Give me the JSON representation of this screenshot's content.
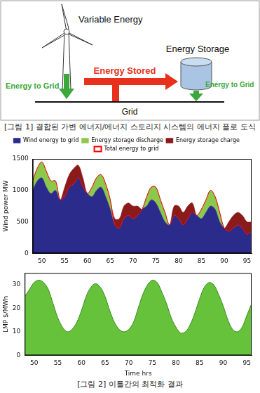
{
  "figure1": {
    "diagram": {
      "source": "Variable Energy",
      "storage": "Energy Storage",
      "stored_flow": "Energy Stored",
      "grid_flows": [
        "Energy to Grid",
        "Energy to Grid"
      ],
      "grid": "Grid"
    },
    "caption": "[그림 1] 결합된 가변 에너지/에너지 스토리지 시스템의 에너지 플로 도식"
  },
  "chart_data": [
    {
      "type": "area",
      "stacked": true,
      "legend": "top",
      "grid": false,
      "y_label": "Wind power MW",
      "x": [
        48,
        49,
        50,
        51,
        52,
        53,
        54,
        55,
        56,
        57,
        58,
        59,
        60,
        61,
        62,
        63,
        64,
        65,
        66,
        67,
        68,
        69,
        70,
        71,
        72,
        73,
        74,
        75,
        76,
        77,
        78,
        79,
        80,
        81,
        82,
        83,
        84,
        85,
        86,
        87,
        88,
        89,
        90,
        91,
        92,
        93,
        94,
        95,
        96
      ],
      "xlim": [
        48,
        96
      ],
      "xticks": [
        50,
        55,
        60,
        65,
        70,
        75,
        80,
        85,
        90,
        95
      ],
      "ylim": [
        0,
        1500
      ],
      "yticks": [
        0,
        500,
        1000,
        1500
      ],
      "series": [
        {
          "name": "Wind energy to grid",
          "type": "area",
          "color": "#2b2b8c",
          "values": [
            1000,
            1150,
            1200,
            1050,
            950,
            1000,
            850,
            900,
            1050,
            1100,
            1200,
            1050,
            950,
            900,
            1000,
            1050,
            900,
            700,
            450,
            400,
            550,
            600,
            550,
            600,
            700,
            750,
            850,
            800,
            650,
            500,
            450,
            600,
            550,
            450,
            550,
            650,
            600,
            550,
            650,
            750,
            700,
            500,
            400,
            350,
            400,
            450,
            400,
            300,
            350
          ]
        },
        {
          "name": "Energy storage discharge",
          "type": "area",
          "color": "#8cc84b",
          "values": [
            150,
            200,
            250,
            250,
            200,
            150,
            0,
            0,
            0,
            0,
            0,
            0,
            0,
            150,
            200,
            200,
            200,
            150,
            0,
            0,
            0,
            0,
            0,
            0,
            0,
            150,
            200,
            250,
            200,
            150,
            0,
            0,
            0,
            0,
            0,
            0,
            0,
            150,
            200,
            250,
            200,
            150,
            0,
            0,
            0,
            0,
            0,
            0,
            0
          ]
        },
        {
          "name": "Energy storage charge",
          "type": "area",
          "color": "#8b1a1a",
          "values": [
            0,
            0,
            0,
            0,
            0,
            0,
            0,
            150,
            200,
            250,
            200,
            150,
            0,
            0,
            0,
            0,
            0,
            0,
            100,
            150,
            200,
            200,
            200,
            150,
            0,
            0,
            0,
            0,
            0,
            0,
            0,
            150,
            200,
            200,
            200,
            150,
            0,
            0,
            0,
            0,
            0,
            0,
            0,
            150,
            200,
            200,
            200,
            200,
            150
          ]
        },
        {
          "name": "Total energy to grid",
          "type": "line",
          "color": "#ff0000",
          "values": [
            1150,
            1350,
            1450,
            1300,
            1150,
            1150,
            850,
            900,
            1050,
            1100,
            1200,
            1050,
            950,
            1050,
            1200,
            1250,
            1100,
            850,
            450,
            400,
            550,
            600,
            550,
            600,
            700,
            900,
            1050,
            1050,
            850,
            650,
            450,
            600,
            550,
            450,
            550,
            650,
            600,
            700,
            850,
            1000,
            900,
            650,
            400,
            350,
            400,
            450,
            400,
            300,
            350
          ]
        }
      ]
    },
    {
      "type": "area",
      "grid": false,
      "x_label": "Time hrs",
      "y_label": "LMP $/MWh",
      "x": [
        48,
        49,
        50,
        51,
        52,
        53,
        54,
        55,
        56,
        57,
        58,
        59,
        60,
        61,
        62,
        63,
        64,
        65,
        66,
        67,
        68,
        69,
        70,
        71,
        72,
        73,
        74,
        75,
        76,
        77,
        78,
        79,
        80,
        81,
        82,
        83,
        84,
        85,
        86,
        87,
        88,
        89,
        90,
        91,
        92,
        93,
        94,
        95,
        96
      ],
      "xlim": [
        48,
        96
      ],
      "xticks": [
        50,
        55,
        60,
        65,
        70,
        75,
        80,
        85,
        90,
        95
      ],
      "ylim": [
        0,
        35
      ],
      "yticks": [
        0,
        10,
        20,
        30
      ],
      "color": "#66c23a",
      "values": [
        25,
        28,
        31,
        32,
        31,
        28,
        22,
        16,
        12,
        10,
        11,
        14,
        19,
        25,
        29,
        30.5,
        29,
        25,
        19,
        14,
        11,
        10,
        11,
        14,
        20,
        26,
        30,
        32,
        31,
        27,
        22,
        16,
        12,
        9.5,
        10,
        13,
        18,
        24,
        29,
        31,
        30,
        26,
        21,
        15,
        11,
        10,
        12,
        17,
        22
      ]
    }
  ],
  "figure2_caption": "[그림 2] 이틀간의 최적화 결과"
}
